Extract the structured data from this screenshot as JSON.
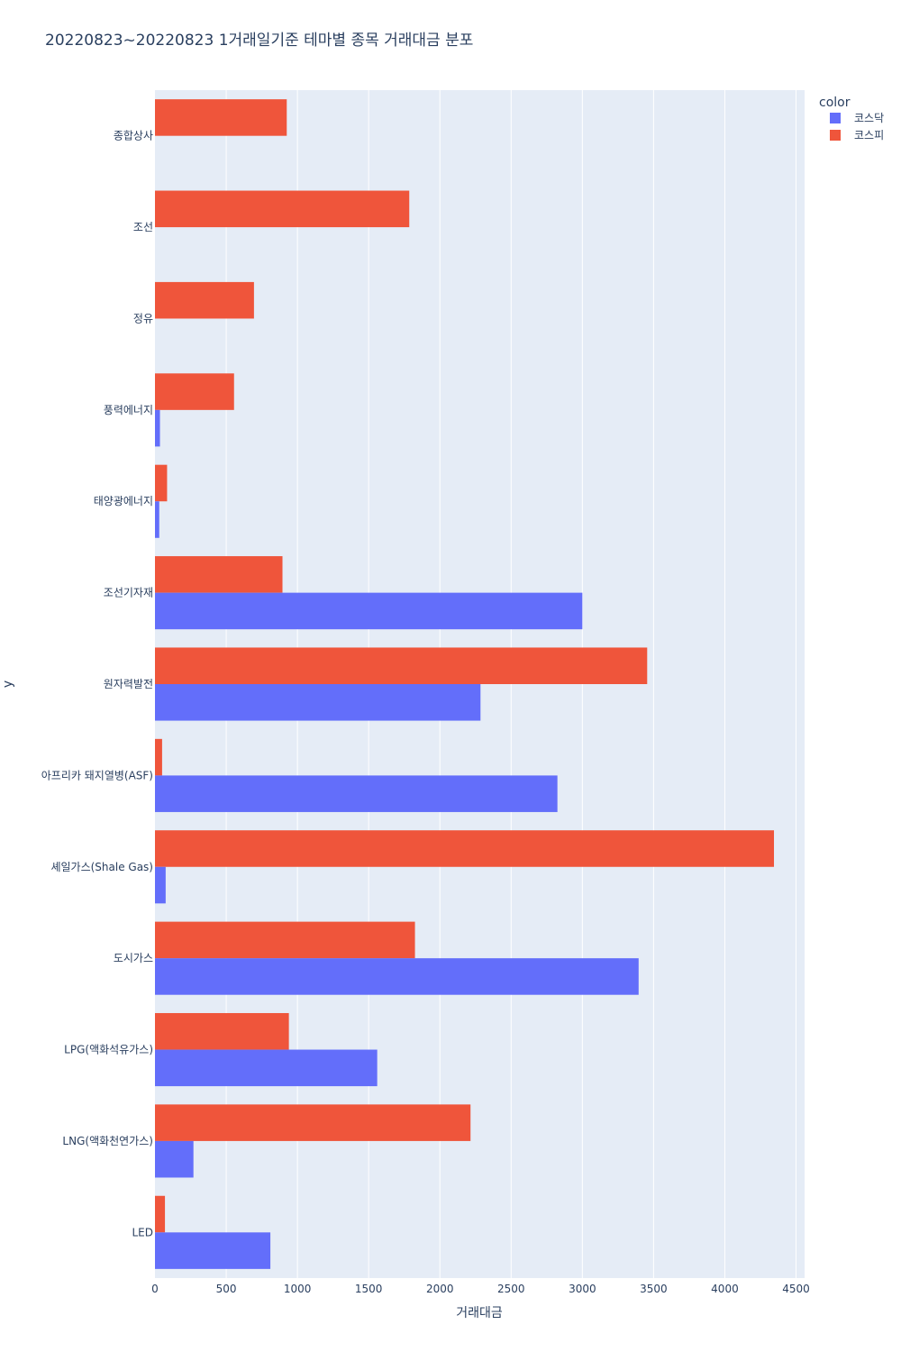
{
  "chart_data": {
    "type": "bar",
    "orientation": "horizontal",
    "title": "20220823~20220823 1거래일기준 테마별 종목 거래대금 분포",
    "xlabel": "거래대금",
    "ylabel": "y",
    "xlim": [
      0,
      4560
    ],
    "xticks": [
      "0",
      "500",
      "1000",
      "1500",
      "2000",
      "2500",
      "3000",
      "3500",
      "4000",
      "4500"
    ],
    "categories": [
      "종합상사",
      "조선",
      "정유",
      "풍력에너지",
      "태양광에너지",
      "조선기자재",
      "원자력발전",
      "아프리카 돼지열병(ASF)",
      "셰일가스(Shale Gas)",
      "도시가스",
      "LPG(액화석유가스)",
      "LNG(액화천연가스)",
      "LED"
    ],
    "legend": {
      "title": "color",
      "position": "top-right"
    },
    "series": [
      {
        "name": "코스닥",
        "color": "#636efa",
        "values": [
          0,
          0,
          0,
          35,
          30,
          3000,
          2285,
          2825,
          75,
          3395,
          1560,
          270,
          810
        ]
      },
      {
        "name": "코스피",
        "color": "#ef553b",
        "values": [
          925,
          1785,
          695,
          555,
          85,
          895,
          3455,
          50,
          4345,
          1825,
          940,
          2215,
          70
        ]
      }
    ],
    "grid": true,
    "plot_background": "#e5ecf6"
  }
}
